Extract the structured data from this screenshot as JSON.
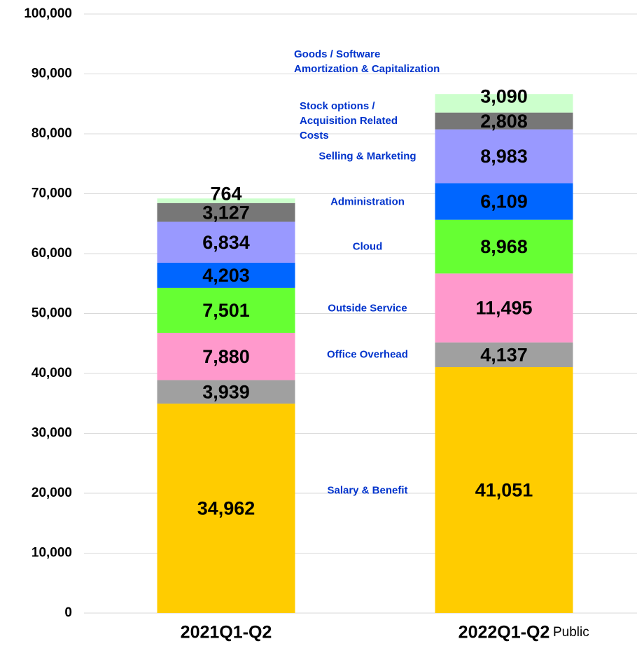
{
  "chart_data": {
    "type": "stacked_bar",
    "categories": [
      "2021Q1-Q2",
      "2022Q1-Q2"
    ],
    "series": [
      {
        "name": "Salary & Benefit",
        "color": "#ffcc00",
        "values": [
          34962,
          41051
        ],
        "value_labels": [
          "34,962",
          "41,051"
        ]
      },
      {
        "name": "Office  Overhead",
        "color": "#a0a0a0",
        "values": [
          3939,
          4137
        ],
        "value_labels": [
          "3,939",
          "4,137"
        ]
      },
      {
        "name": "Outside Service",
        "color": "#ff99cc",
        "values": [
          7880,
          11495
        ],
        "value_labels": [
          "7,880",
          "11,495"
        ]
      },
      {
        "name": "Cloud",
        "color": "#66ff33",
        "values": [
          7501,
          8968
        ],
        "value_labels": [
          "7,501",
          "8,968"
        ]
      },
      {
        "name": "Administration",
        "color": "#0066ff",
        "values": [
          4203,
          6109
        ],
        "value_labels": [
          "4,203",
          "6,109"
        ]
      },
      {
        "name": "Selling & Marketing",
        "color": "#9999ff",
        "values": [
          6834,
          8983
        ],
        "value_labels": [
          "6,834",
          "8,983"
        ]
      },
      {
        "name": "Stock options /\nAcquisition Related\nCosts",
        "color": "#777777",
        "values": [
          3127,
          2808
        ],
        "value_labels": [
          "3,127",
          "2,808"
        ]
      },
      {
        "name": "Goods / Software\nAmortization & Capitalization",
        "color": "#ccffcc",
        "values": [
          764,
          3090
        ],
        "value_labels": [
          "764",
          "3,090"
        ]
      }
    ],
    "ylim": [
      0,
      100000
    ],
    "yticks": [
      0,
      {
        "value": 10000,
        "label": "10,000"
      },
      {
        "value": 20000,
        "label": "20,000"
      },
      {
        "value": 30000,
        "label": "30,000"
      },
      {
        "value": 40000,
        "label": "40,000"
      },
      {
        "value": 50000,
        "label": "50,000"
      },
      {
        "value": 60000,
        "label": "60,000"
      },
      {
        "value": 70000,
        "label": "70,000"
      },
      {
        "value": 80000,
        "label": "80,000"
      },
      {
        "value": 90000,
        "label": "90,000"
      },
      {
        "value": 100000,
        "label": "100,000"
      }
    ],
    "grid": true,
    "annotation": "Public"
  }
}
